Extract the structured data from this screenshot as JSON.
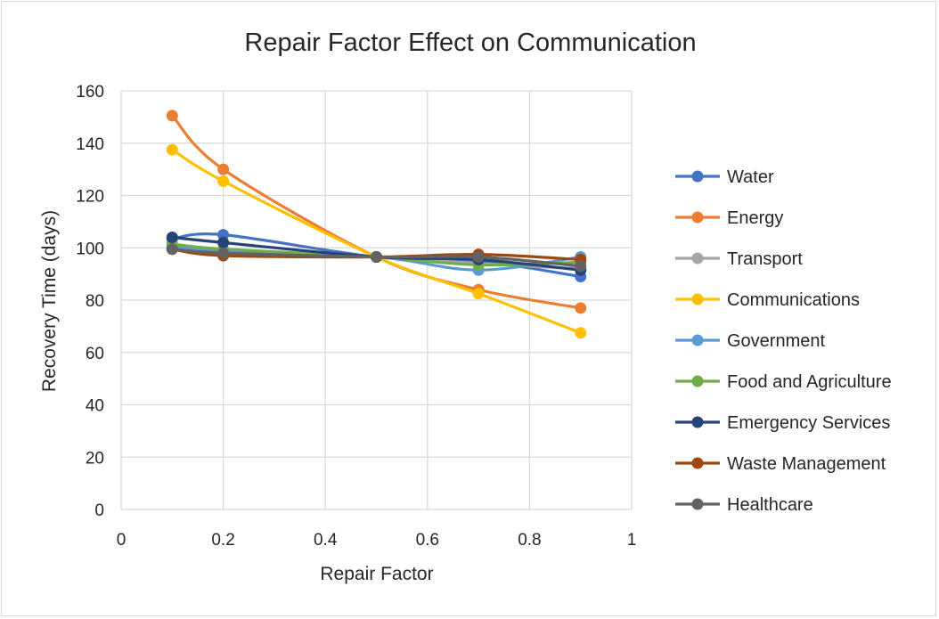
{
  "chart_data": {
    "type": "scatter",
    "title": "Repair Factor Effect on Communication",
    "xlabel": "Repair Factor",
    "ylabel": "Recovery Time (days)",
    "xlim": [
      0,
      1
    ],
    "ylim": [
      0,
      160
    ],
    "x_ticks": [
      0,
      0.2,
      0.4,
      0.6,
      0.8,
      1
    ],
    "y_ticks": [
      0,
      20,
      40,
      60,
      80,
      100,
      120,
      140,
      160
    ],
    "x_tick_labels": [
      "0",
      "0.2",
      "0.4",
      "0.6",
      "0.8",
      "1"
    ],
    "y_tick_labels": [
      "0",
      "20",
      "40",
      "60",
      "80",
      "100",
      "120",
      "140",
      "160"
    ],
    "grid": true,
    "legend_position": "right",
    "smooth_lines": true,
    "x": [
      0.1,
      0.2,
      0.5,
      0.7,
      0.9
    ],
    "series": [
      {
        "name": "Water",
        "color": "#4472c4",
        "values": [
          103.5,
          105,
          96.5,
          95,
          89
        ]
      },
      {
        "name": "Energy",
        "color": "#ed7d31",
        "values": [
          150.5,
          130,
          96.5,
          84,
          77
        ]
      },
      {
        "name": "Transport",
        "color": "#a5a5a5",
        "values": [
          101,
          99,
          96.5,
          94,
          92
        ]
      },
      {
        "name": "Communications",
        "color": "#ffc000",
        "values": [
          137.5,
          125.5,
          96.5,
          82.5,
          67.5
        ]
      },
      {
        "name": "Government",
        "color": "#5b9bd5",
        "values": [
          100.5,
          98.5,
          96.5,
          91.5,
          96.5
        ]
      },
      {
        "name": "Food and Agriculture",
        "color": "#70ad47",
        "values": [
          101.5,
          99.5,
          96.5,
          93.5,
          94.5
        ]
      },
      {
        "name": "Emergency Services",
        "color": "#264478",
        "values": [
          104,
          102,
          96.5,
          95.5,
          91.5
        ]
      },
      {
        "name": "Waste Management",
        "color": "#9e480e",
        "values": [
          99.5,
          97,
          96.5,
          97.5,
          95.5
        ]
      },
      {
        "name": "Healthcare",
        "color": "#636363",
        "values": [
          99.5,
          98,
          96.5,
          96.5,
          93
        ]
      }
    ]
  }
}
